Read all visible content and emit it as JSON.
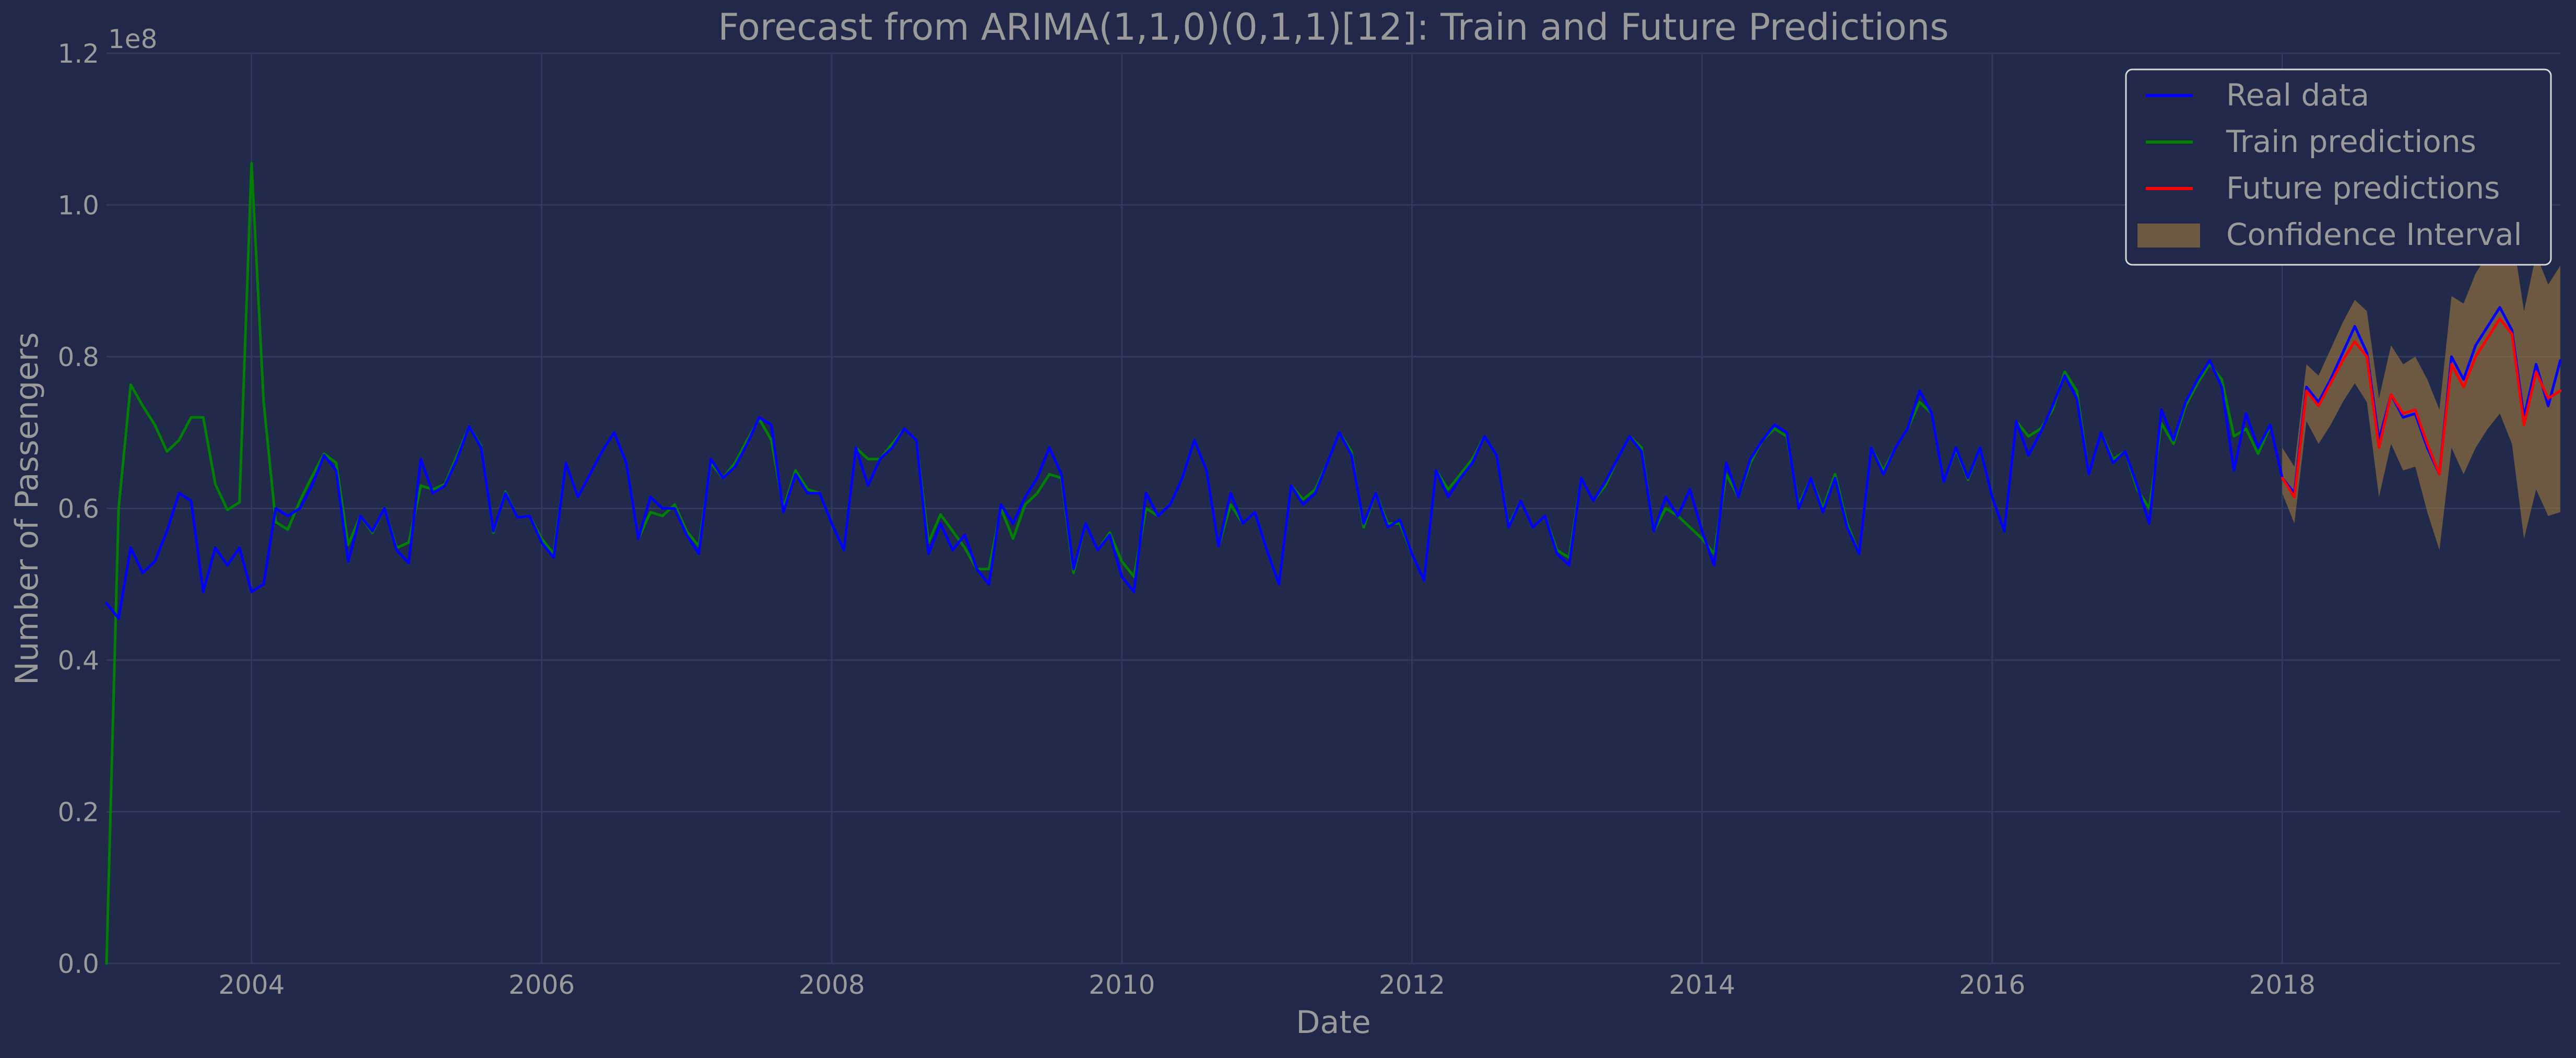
{
  "chart_data": {
    "type": "line",
    "title": "Forecast from ARIMA(1,1,0)(0,1,1)[12]: Train and Future Predictions",
    "xlabel": "Date",
    "ylabel": "Number of Passengers",
    "y_multiplier_label": "1e8",
    "xlim": [
      2003.0,
      2019.917
    ],
    "ylim": [
      0.0,
      1.2
    ],
    "y_ticks": [
      0.0,
      0.2,
      0.4,
      0.6,
      0.8,
      1.0,
      1.2
    ],
    "y_tick_labels": [
      "0.0",
      "0.2",
      "0.4",
      "0.6",
      "0.8",
      "1.0",
      "1.2"
    ],
    "x_ticks": [
      2004,
      2006,
      2008,
      2010,
      2012,
      2014,
      2016,
      2018
    ],
    "x_tick_labels": [
      "2004",
      "2006",
      "2008",
      "2010",
      "2012",
      "2014",
      "2016",
      "2018"
    ],
    "grid": true,
    "legend_position": "top-right",
    "series": [
      {
        "name": "Real data",
        "color": "#0000ff",
        "x_start": 2003.0,
        "step": 0.0833333,
        "values": [
          0.475,
          0.455,
          0.548,
          0.515,
          0.53,
          0.57,
          0.62,
          0.61,
          0.49,
          0.548,
          0.525,
          0.548,
          0.49,
          0.5,
          0.6,
          0.59,
          0.6,
          0.63,
          0.67,
          0.65,
          0.53,
          0.59,
          0.57,
          0.6,
          0.545,
          0.528,
          0.665,
          0.62,
          0.63,
          0.665,
          0.708,
          0.68,
          0.57,
          0.62,
          0.588,
          0.59,
          0.555,
          0.535,
          0.66,
          0.615,
          0.645,
          0.675,
          0.7,
          0.66,
          0.56,
          0.615,
          0.6,
          0.6,
          0.565,
          0.54,
          0.665,
          0.64,
          0.655,
          0.685,
          0.72,
          0.71,
          0.595,
          0.645,
          0.62,
          0.62,
          0.58,
          0.545,
          0.68,
          0.63,
          0.665,
          0.68,
          0.705,
          0.69,
          0.54,
          0.58,
          0.545,
          0.565,
          0.52,
          0.5,
          0.605,
          0.58,
          0.615,
          0.64,
          0.68,
          0.645,
          0.52,
          0.58,
          0.545,
          0.565,
          0.51,
          0.49,
          0.62,
          0.59,
          0.605,
          0.64,
          0.69,
          0.65,
          0.55,
          0.62,
          0.58,
          0.595,
          0.545,
          0.5,
          0.63,
          0.605,
          0.62,
          0.66,
          0.7,
          0.67,
          0.58,
          0.62,
          0.575,
          0.585,
          0.54,
          0.505,
          0.65,
          0.615,
          0.64,
          0.66,
          0.695,
          0.67,
          0.575,
          0.61,
          0.575,
          0.59,
          0.54,
          0.525,
          0.64,
          0.61,
          0.635,
          0.665,
          0.695,
          0.675,
          0.57,
          0.615,
          0.59,
          0.625,
          0.57,
          0.525,
          0.66,
          0.615,
          0.665,
          0.69,
          0.71,
          0.7,
          0.6,
          0.64,
          0.595,
          0.64,
          0.575,
          0.54,
          0.68,
          0.645,
          0.68,
          0.705,
          0.755,
          0.725,
          0.635,
          0.68,
          0.64,
          0.68,
          0.615,
          0.57,
          0.715,
          0.67,
          0.7,
          0.735,
          0.775,
          0.745,
          0.645,
          0.7,
          0.66,
          0.675,
          0.63,
          0.58,
          0.73,
          0.69,
          0.74,
          0.77,
          0.795,
          0.76,
          0.65,
          0.725,
          0.68,
          0.71,
          0.64,
          0.62,
          0.76,
          0.74,
          0.77,
          0.805,
          0.84,
          0.805,
          0.69,
          0.75,
          0.72,
          0.725,
          0.68,
          0.645,
          0.8,
          0.77,
          0.815,
          0.84,
          0.865,
          0.835,
          0.72,
          0.79,
          0.735,
          0.795
        ]
      },
      {
        "name": "Train predictions",
        "color": "#008000",
        "x_start": 2003.0,
        "step": 0.0833333,
        "values": [
          0.0,
          0.6,
          0.763,
          0.735,
          0.71,
          0.675,
          0.69,
          0.72,
          0.72,
          0.632,
          0.598,
          0.608,
          1.055,
          0.74,
          0.582,
          0.572,
          0.61,
          0.642,
          0.672,
          0.66,
          0.552,
          0.59,
          0.568,
          0.6,
          0.548,
          0.555,
          0.63,
          0.625,
          0.632,
          0.67,
          0.708,
          0.682,
          0.568,
          0.622,
          0.588,
          0.59,
          0.56,
          0.54,
          0.66,
          0.615,
          0.645,
          0.675,
          0.7,
          0.66,
          0.56,
          0.595,
          0.59,
          0.605,
          0.57,
          0.55,
          0.66,
          0.64,
          0.66,
          0.69,
          0.718,
          0.69,
          0.6,
          0.65,
          0.625,
          0.62,
          0.58,
          0.545,
          0.68,
          0.665,
          0.665,
          0.685,
          0.705,
          0.69,
          0.555,
          0.592,
          0.57,
          0.548,
          0.52,
          0.52,
          0.6,
          0.56,
          0.605,
          0.62,
          0.645,
          0.64,
          0.515,
          0.58,
          0.545,
          0.568,
          0.53,
          0.51,
          0.6,
          0.59,
          0.605,
          0.64,
          0.69,
          0.65,
          0.55,
          0.605,
          0.58,
          0.595,
          0.545,
          0.5,
          0.63,
          0.612,
          0.625,
          0.66,
          0.7,
          0.675,
          0.575,
          0.62,
          0.58,
          0.58,
          0.54,
          0.505,
          0.65,
          0.625,
          0.645,
          0.665,
          0.695,
          0.67,
          0.578,
          0.61,
          0.575,
          0.59,
          0.545,
          0.535,
          0.64,
          0.61,
          0.63,
          0.665,
          0.695,
          0.68,
          0.57,
          0.6,
          0.59,
          0.575,
          0.56,
          0.54,
          0.645,
          0.615,
          0.66,
          0.69,
          0.705,
          0.695,
          0.605,
          0.64,
          0.6,
          0.645,
          0.58,
          0.54,
          0.68,
          0.65,
          0.68,
          0.705,
          0.74,
          0.725,
          0.635,
          0.678,
          0.638,
          0.68,
          0.615,
          0.57,
          0.715,
          0.695,
          0.705,
          0.73,
          0.78,
          0.755,
          0.645,
          0.7,
          0.665,
          0.675,
          0.625,
          0.6,
          0.712,
          0.685,
          0.735,
          0.765,
          0.79,
          0.77,
          0.695,
          0.705,
          0.672,
          0.708,
          null,
          null,
          null,
          null,
          null,
          null,
          null,
          null,
          null,
          null,
          null,
          null,
          null,
          null,
          null,
          null,
          null,
          null,
          null,
          null,
          null,
          null,
          null,
          null
        ]
      },
      {
        "name": "Future predictions",
        "color": "#ff0000",
        "x_start": 2018.0,
        "step": 0.0833333,
        "values": [
          0.64,
          0.615,
          0.755,
          0.735,
          0.765,
          0.795,
          0.82,
          0.8,
          0.68,
          0.75,
          0.725,
          0.73,
          0.685,
          0.645,
          0.79,
          0.76,
          0.8,
          0.825,
          0.85,
          0.83,
          0.71,
          0.78,
          0.745,
          0.755
        ]
      },
      {
        "name": "Confidence Interval",
        "color": "#a0783c",
        "x_start": 2018.0,
        "step": 0.0833333,
        "lower": [
          0.62,
          0.58,
          0.715,
          0.685,
          0.71,
          0.74,
          0.765,
          0.74,
          0.615,
          0.685,
          0.65,
          0.655,
          0.595,
          0.545,
          0.68,
          0.645,
          0.68,
          0.705,
          0.725,
          0.685,
          0.56,
          0.625,
          0.59,
          0.595
        ],
        "upper": [
          0.68,
          0.655,
          0.79,
          0.775,
          0.81,
          0.845,
          0.875,
          0.86,
          0.745,
          0.815,
          0.79,
          0.8,
          0.77,
          0.73,
          0.88,
          0.87,
          0.91,
          0.935,
          0.96,
          0.965,
          0.86,
          0.935,
          0.895,
          0.92
        ]
      }
    ]
  }
}
